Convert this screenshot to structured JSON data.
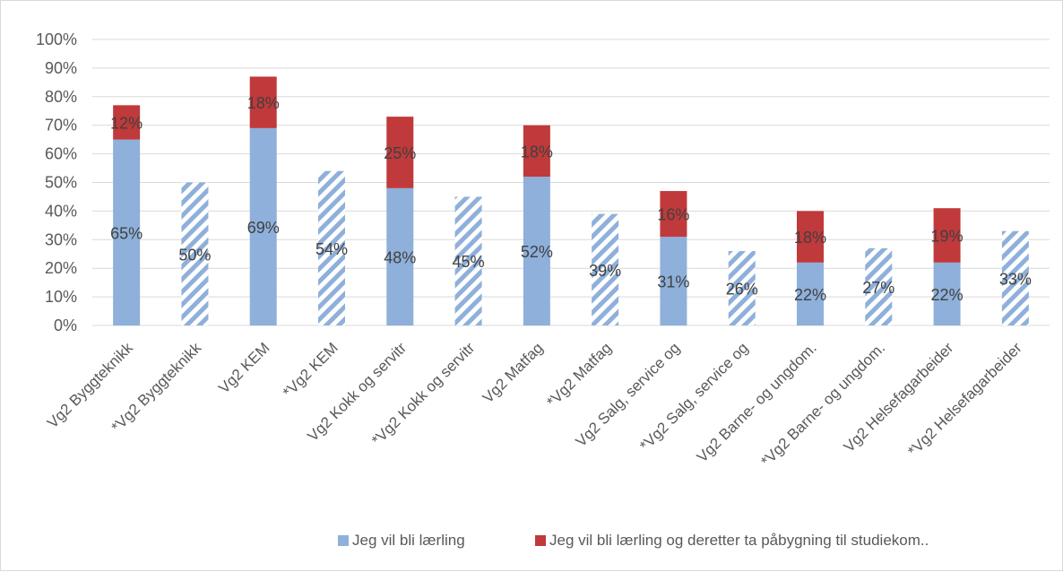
{
  "chart_data": {
    "type": "bar",
    "stacked": true,
    "categories": [
      "Vg2 Byggteknikk",
      "*Vg2 Byggteknikk",
      "Vg2 KEM",
      "*Vg2 KEM",
      "Vg2 Kokk og servitr",
      "*Vg2 Kokk og servitr",
      "Vg2 Matfag",
      "*Vg2 Matfag",
      "Vg2 Salg, service og",
      "*Vg2 Salg, service og",
      "Vg2 Barne- og ungdom.",
      "*Vg2 Barne- og ungdom.",
      "Vg2 Helsefagarbeider",
      "*Vg2 Helsefagarbeider"
    ],
    "series": [
      {
        "name": "Jeg vil bli lærling",
        "color": "#8eb0da",
        "values": [
          65,
          50,
          69,
          54,
          48,
          45,
          52,
          39,
          31,
          26,
          22,
          27,
          22,
          33
        ],
        "labels": [
          "65%",
          "50%",
          "69%",
          "54%",
          "48%",
          "45%",
          "52%",
          "39%",
          "31%",
          "26%",
          "22%",
          "27%",
          "22%",
          "33%"
        ],
        "hatched": [
          false,
          true,
          false,
          true,
          false,
          true,
          false,
          true,
          false,
          true,
          false,
          true,
          false,
          true
        ]
      },
      {
        "name": "Jeg vil bli lærling og deretter ta påbygning til studiekom..",
        "color": "#c0393b",
        "values": [
          12,
          0,
          18,
          0,
          25,
          0,
          18,
          0,
          16,
          0,
          18,
          0,
          19,
          0
        ],
        "labels": [
          "12%",
          "",
          "18%",
          "",
          "25%",
          "",
          "18%",
          "",
          "16%",
          "",
          "18%",
          "",
          "19%",
          ""
        ]
      }
    ],
    "ylim": [
      0,
      100
    ],
    "yticks": [
      "0%",
      "10%",
      "20%",
      "30%",
      "40%",
      "50%",
      "60%",
      "70%",
      "80%",
      "90%",
      "100%"
    ],
    "grid": true,
    "legend_position": "bottom"
  }
}
